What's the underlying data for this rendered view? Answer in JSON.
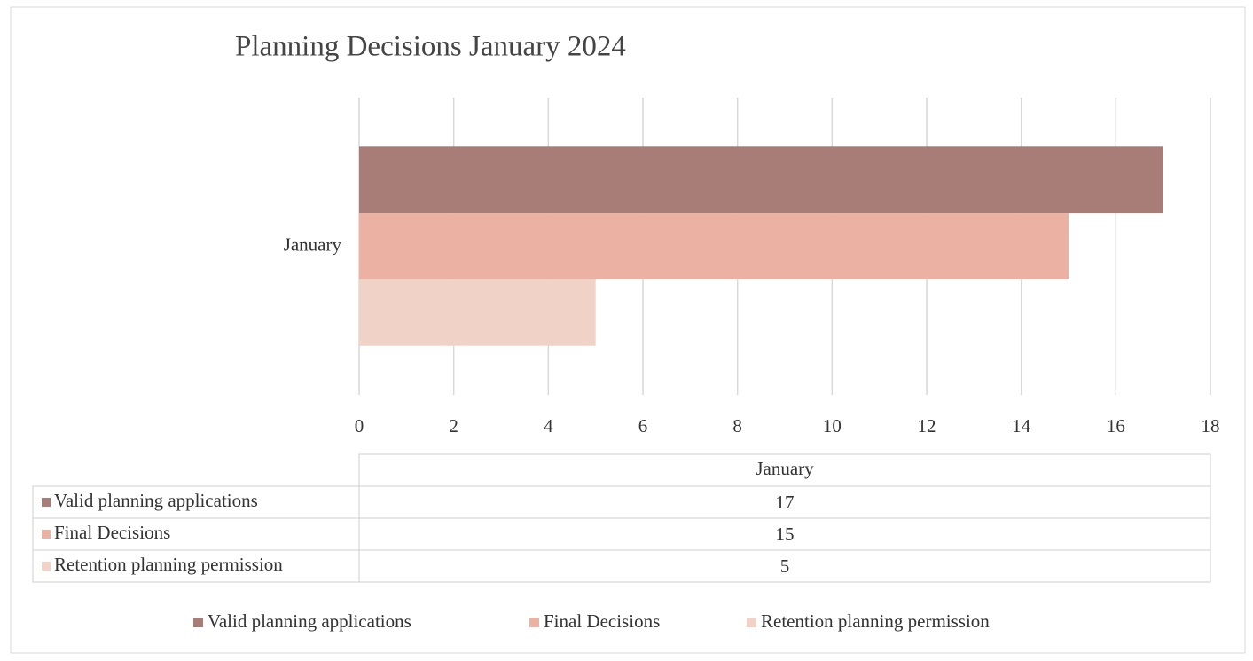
{
  "chart_data": {
    "type": "bar",
    "title": "Planning Decisions January 2024",
    "categories": [
      "January"
    ],
    "series": [
      {
        "name": "Valid planning applications",
        "color": "#a87d77",
        "values": [
          17
        ]
      },
      {
        "name": "Final Decisions",
        "color": "#ebb1a2",
        "values": [
          15
        ]
      },
      {
        "name": "Retention planning permission",
        "color": "#f1d2c7",
        "values": [
          5
        ]
      }
    ],
    "xlim": [
      0,
      18
    ],
    "xticks": [
      0,
      2,
      4,
      6,
      8,
      10,
      12,
      14,
      16,
      18
    ],
    "grid": true
  }
}
